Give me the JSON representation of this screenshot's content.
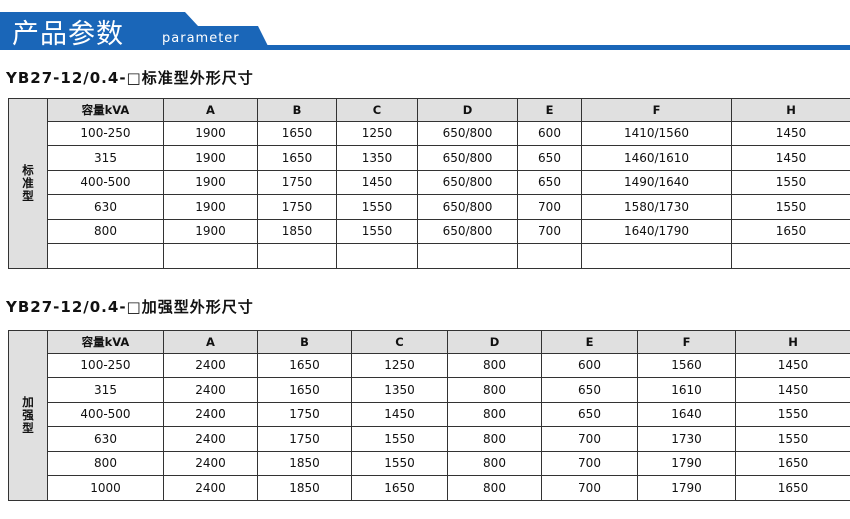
{
  "header": {
    "title": "产品参数",
    "subtitle": "parameter",
    "accent": "#1a66b8"
  },
  "standard": {
    "title": "YB27-12/0.4-□标准型外形尺寸",
    "side_label": "标准型",
    "columns": [
      "容量kVA",
      "A",
      "B",
      "C",
      "D",
      "E",
      "F",
      "H"
    ],
    "rows": [
      [
        "100-250",
        "1900",
        "1650",
        "1250",
        "650/800",
        "600",
        "1410/1560",
        "1450"
      ],
      [
        "315",
        "1900",
        "1650",
        "1350",
        "650/800",
        "650",
        "1460/1610",
        "1450"
      ],
      [
        "400-500",
        "1900",
        "1750",
        "1450",
        "650/800",
        "650",
        "1490/1640",
        "1550"
      ],
      [
        "630",
        "1900",
        "1750",
        "1550",
        "650/800",
        "700",
        "1580/1730",
        "1550"
      ],
      [
        "800",
        "1900",
        "1850",
        "1550",
        "650/800",
        "700",
        "1640/1790",
        "1650"
      ],
      [
        "",
        "",
        "",
        "",
        "",
        "",
        "",
        ""
      ]
    ]
  },
  "reinforced": {
    "title": "YB27-12/0.4-□加强型外形尺寸",
    "side_label": "加强型",
    "columns": [
      "容量kVA",
      "A",
      "B",
      "C",
      "D",
      "E",
      "F",
      "H"
    ],
    "rows": [
      [
        "100-250",
        "2400",
        "1650",
        "1250",
        "800",
        "600",
        "1560",
        "1450"
      ],
      [
        "315",
        "2400",
        "1650",
        "1350",
        "800",
        "650",
        "1610",
        "1450"
      ],
      [
        "400-500",
        "2400",
        "1750",
        "1450",
        "800",
        "650",
        "1640",
        "1550"
      ],
      [
        "630",
        "2400",
        "1750",
        "1550",
        "800",
        "700",
        "1730",
        "1550"
      ],
      [
        "800",
        "2400",
        "1850",
        "1550",
        "800",
        "700",
        "1790",
        "1650"
      ],
      [
        "1000",
        "2400",
        "1850",
        "1650",
        "800",
        "700",
        "1790",
        "1650"
      ]
    ]
  }
}
